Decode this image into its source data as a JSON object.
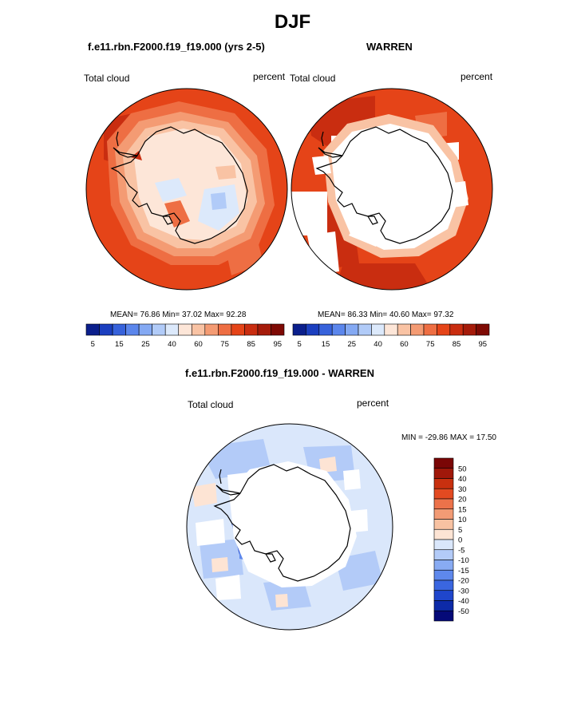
{
  "page": {
    "title": "DJF"
  },
  "colors": {
    "abs_scale": [
      "#0b1f8c",
      "#1b3fbf",
      "#3762db",
      "#5b86ec",
      "#84a9f3",
      "#b1cbf8",
      "#dce9fb",
      "#fde6d8",
      "#f9c3a4",
      "#f49b73",
      "#ee6e43",
      "#e54418",
      "#c92d10",
      "#a51b0a",
      "#7e0a04"
    ],
    "diff_scale": [
      "#050a78",
      "#0d2aa8",
      "#1f46cc",
      "#3a66e0",
      "#5e88ec",
      "#88abf3",
      "#b3cbf8",
      "#dae7fb",
      "#fde4d4",
      "#f8c2a2",
      "#f29b75",
      "#ec724a",
      "#e34a21",
      "#c8300f",
      "#a0180a",
      "#7a0606"
    ],
    "coast": "#000000"
  },
  "panel_left": {
    "title": "f.e11.rbn.F2000.f19_f19.000 (yrs 2-5)",
    "left_label": "Total cloud",
    "right_label": "percent",
    "stats": "MEAN=  76.86  Min=  37.02  Max=  92.28",
    "colorbar_labels": [
      "5",
      "15",
      "25",
      "40",
      "60",
      "75",
      "85",
      "95"
    ]
  },
  "panel_right": {
    "title": "WARREN",
    "left_label": "Total cloud",
    "right_label": "percent",
    "stats": "MEAN=  86.33  Min=  40.60  Max=  97.32",
    "colorbar_labels": [
      "5",
      "15",
      "25",
      "40",
      "60",
      "75",
      "85",
      "95"
    ]
  },
  "panel_diff": {
    "title": "f.e11.rbn.F2000.f19_f19.000 - WARREN",
    "left_label": "Total cloud",
    "right_label": "percent",
    "stats": "MIN = -29.86 MAX =  17.50",
    "colorbar_labels": [
      "50",
      "40",
      "30",
      "20",
      "15",
      "10",
      "5",
      "0",
      "-5",
      "-10",
      "-15",
      "-20",
      "-30",
      "-40",
      "-50"
    ]
  }
}
